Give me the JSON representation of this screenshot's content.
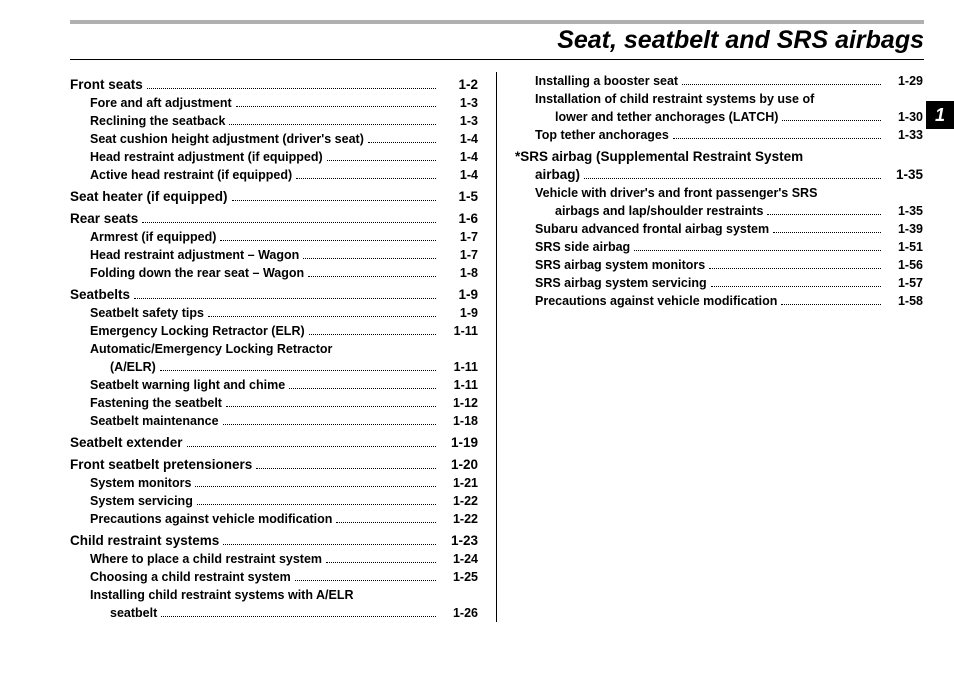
{
  "chapter_title": "Seat, seatbelt and SRS airbags",
  "chapter_tab": "1",
  "left": [
    {
      "lv": 0,
      "t": "Front seats",
      "p": "1-2"
    },
    {
      "lv": 1,
      "t": "Fore and aft adjustment",
      "p": "1-3"
    },
    {
      "lv": 1,
      "t": "Reclining the seatback",
      "p": "1-3"
    },
    {
      "lv": 1,
      "t": "Seat cushion height adjustment (driver's seat)",
      "p": "1-4"
    },
    {
      "lv": 1,
      "t": "Head restraint adjustment (if equipped)",
      "p": "1-4"
    },
    {
      "lv": 1,
      "t": "Active head restraint (if equipped)",
      "p": "1-4"
    },
    {
      "lv": 0,
      "t": "Seat heater (if equipped)",
      "p": "1-5"
    },
    {
      "lv": 0,
      "t": "Rear seats",
      "p": "1-6"
    },
    {
      "lv": 1,
      "t": "Armrest (if equipped)",
      "p": "1-7"
    },
    {
      "lv": 1,
      "t": "Head restraint adjustment – Wagon",
      "p": "1-7"
    },
    {
      "lv": 1,
      "t": "Folding down the rear seat – Wagon",
      "p": "1-8"
    },
    {
      "lv": 0,
      "t": "Seatbelts",
      "p": "1-9"
    },
    {
      "lv": 1,
      "t": "Seatbelt safety tips",
      "p": "1-9"
    },
    {
      "lv": 1,
      "t": "Emergency Locking Retractor (ELR)",
      "p": "1-11"
    },
    {
      "lv": 1,
      "wrap": true,
      "t1": "Automatic/Emergency Locking Retractor",
      "t2": "(A/ELR)",
      "p": "1-11"
    },
    {
      "lv": 1,
      "t": "Seatbelt warning light and chime",
      "p": "1-11"
    },
    {
      "lv": 1,
      "t": "Fastening the seatbelt",
      "p": "1-12"
    },
    {
      "lv": 1,
      "t": "Seatbelt maintenance",
      "p": "1-18"
    },
    {
      "lv": 0,
      "t": "Seatbelt extender",
      "p": "1-19"
    },
    {
      "lv": 0,
      "t": "Front seatbelt pretensioners",
      "p": "1-20"
    },
    {
      "lv": 1,
      "t": "System monitors",
      "p": "1-21"
    },
    {
      "lv": 1,
      "t": "System servicing",
      "p": "1-22"
    },
    {
      "lv": 1,
      "t": "Precautions against vehicle modification",
      "p": "1-22"
    },
    {
      "lv": 0,
      "t": "Child restraint systems",
      "p": "1-23"
    },
    {
      "lv": 1,
      "t": "Where to place a child restraint system",
      "p": "1-24"
    },
    {
      "lv": 1,
      "t": "Choosing a child restraint system",
      "p": "1-25"
    },
    {
      "lv": 1,
      "wrap": true,
      "t1": "Installing child restraint systems with A/ELR",
      "t2": "seatbelt",
      "p": "1-26"
    }
  ],
  "right": [
    {
      "lv": 1,
      "t": "Installing a booster seat",
      "p": "1-29"
    },
    {
      "lv": 1,
      "wrap": true,
      "t1": "Installation of child restraint systems by use of",
      "t2": "lower and tether anchorages (LATCH)",
      "p": "1-30"
    },
    {
      "lv": 1,
      "t": "Top tether anchorages",
      "p": "1-33"
    },
    {
      "lv": 0,
      "wrap": true,
      "t1": "*SRS airbag (Supplemental Restraint System",
      "t2": "airbag)",
      "p": "1-35",
      "wrapIndent": 1
    },
    {
      "lv": 1,
      "wrap": true,
      "t1": "Vehicle with driver's and front passenger's SRS",
      "t2": "airbags and lap/shoulder restraints",
      "p": "1-35"
    },
    {
      "lv": 1,
      "t": "Subaru advanced frontal airbag system",
      "p": "1-39"
    },
    {
      "lv": 1,
      "t": "SRS side airbag",
      "p": "1-51"
    },
    {
      "lv": 1,
      "t": "SRS airbag system monitors",
      "p": "1-56"
    },
    {
      "lv": 1,
      "t": "SRS airbag system servicing",
      "p": "1-57"
    },
    {
      "lv": 1,
      "t": "Precautions against vehicle modification",
      "p": "1-58"
    }
  ]
}
